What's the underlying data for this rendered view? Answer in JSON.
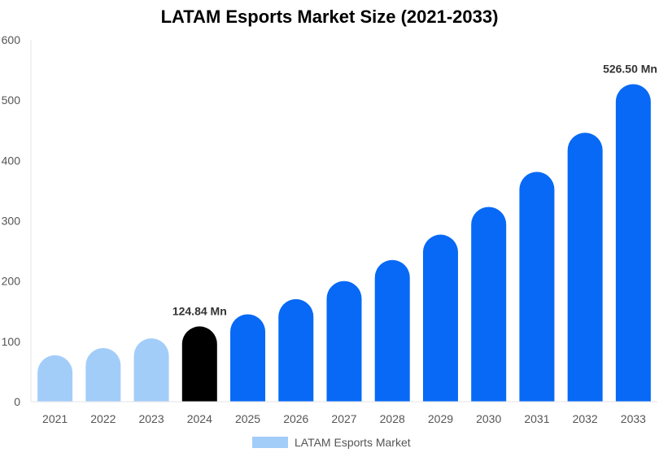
{
  "chart_data": {
    "type": "bar",
    "title": "LATAM Esports Market Size (2021-2033)",
    "xlabel": "",
    "ylabel": "",
    "categories": [
      "2021",
      "2022",
      "2023",
      "2024",
      "2025",
      "2026",
      "2027",
      "2028",
      "2029",
      "2030",
      "2031",
      "2032",
      "2033"
    ],
    "series": [
      {
        "name": "LATAM Esports Market",
        "values": [
          77,
          89,
          105,
          124.84,
          145,
          170,
          200,
          235,
          277,
          323,
          381,
          446,
          526.5
        ]
      }
    ],
    "ylim": [
      0,
      600
    ],
    "yticks": [
      0,
      100,
      200,
      300,
      400,
      500,
      600
    ],
    "grid": false,
    "legend": "bottom-center",
    "data_labels": [
      {
        "category": "2024",
        "text": "124.84 Mn"
      },
      {
        "category": "2033",
        "text": "526.50 Mn"
      }
    ],
    "colors": {
      "historical": "#a3cdf9",
      "base_year": "#000000",
      "forecast": "#0769f5",
      "legend": "#a3cdf9"
    },
    "base_year": "2024"
  }
}
